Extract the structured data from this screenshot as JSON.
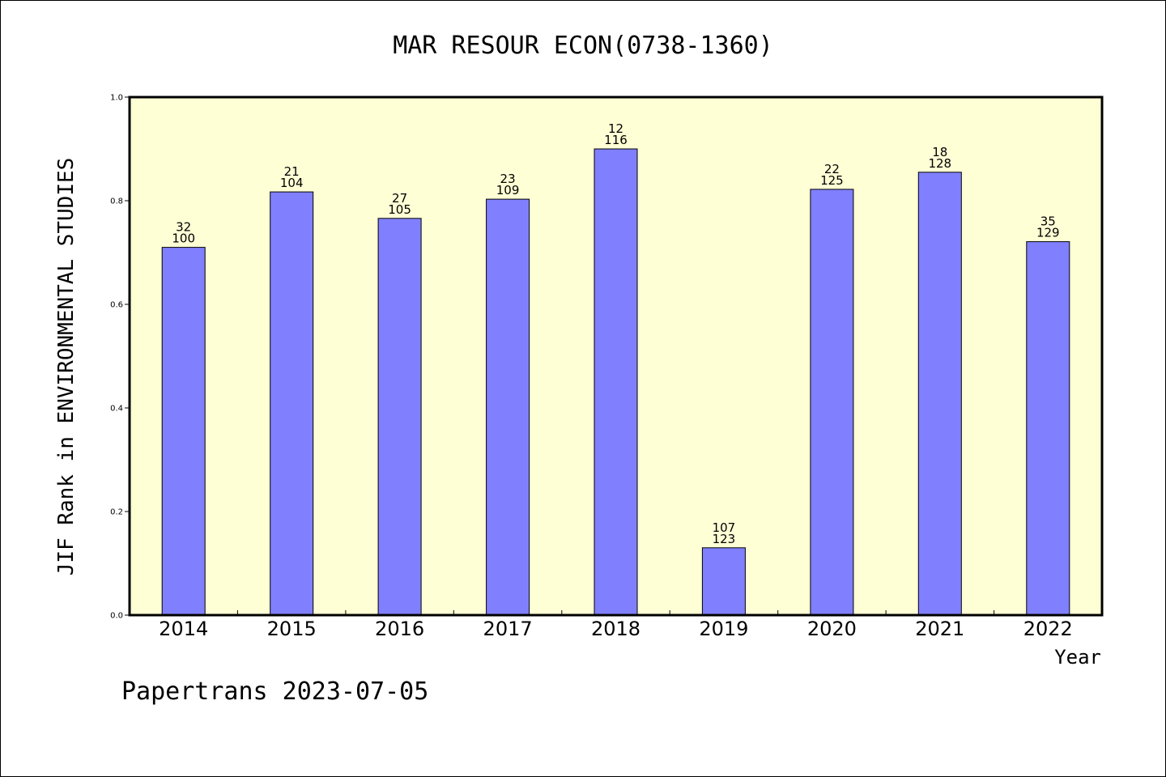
{
  "colors": {
    "plot_background": "#ffffd5",
    "bar_fill": "#8080ff",
    "bar_stroke": "#000000",
    "axis": "#000000"
  },
  "footer": "Papertrans 2023-07-05",
  "chart_data": {
    "type": "bar",
    "title": "MAR RESOUR ECON(0738-1360)",
    "xlabel": "Year",
    "ylabel": "JIF Rank in ENVIRONMENTAL STUDIES",
    "ylim": [
      0,
      1.0
    ],
    "yticks": [
      "0.0",
      "0.2",
      "0.4",
      "0.6",
      "0.8",
      "1.0"
    ],
    "grid": false,
    "categories": [
      "2014",
      "2015",
      "2016",
      "2017",
      "2018",
      "2019",
      "2020",
      "2021",
      "2022"
    ],
    "values": [
      0.71,
      0.817,
      0.766,
      0.803,
      0.9,
      0.13,
      0.822,
      0.855,
      0.721
    ],
    "annotations": [
      {
        "rank": "32",
        "total": "100"
      },
      {
        "rank": "21",
        "total": "104"
      },
      {
        "rank": "27",
        "total": "105"
      },
      {
        "rank": "23",
        "total": "109"
      },
      {
        "rank": "12",
        "total": "116"
      },
      {
        "rank": "107",
        "total": "123"
      },
      {
        "rank": "22",
        "total": "125"
      },
      {
        "rank": "18",
        "total": "128"
      },
      {
        "rank": "35",
        "total": "129"
      }
    ]
  }
}
